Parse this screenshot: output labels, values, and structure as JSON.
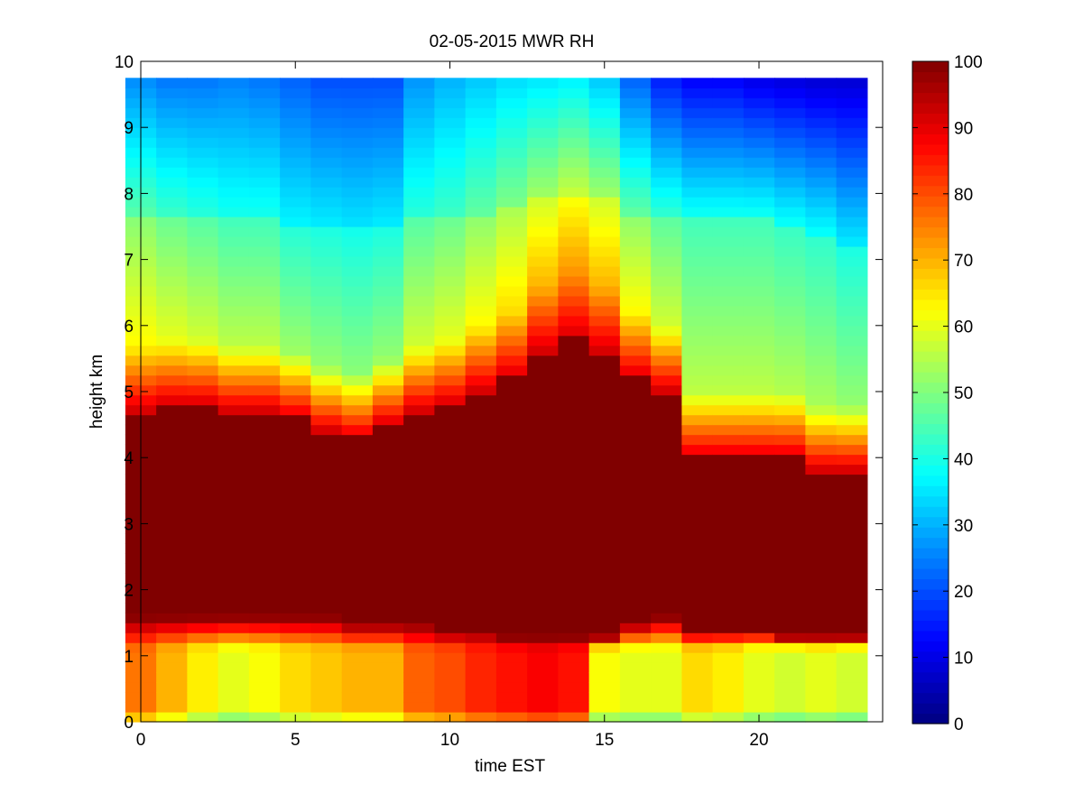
{
  "chart_data": {
    "type": "heatmap",
    "title": "02-05-2015 MWR RH",
    "xlabel": "time EST",
    "ylabel": "height km",
    "xlim": [
      0,
      24
    ],
    "ylim": [
      0,
      10
    ],
    "xticks": [
      0,
      5,
      10,
      15,
      20
    ],
    "yticks": [
      0,
      1,
      2,
      3,
      4,
      5,
      6,
      7,
      8,
      9,
      10
    ],
    "x_centers": [
      0,
      1,
      2,
      3,
      4,
      5,
      6,
      7,
      8,
      9,
      10,
      11,
      12,
      13,
      14,
      15,
      16,
      17,
      18,
      19,
      20,
      21,
      22,
      23
    ],
    "z_label": "RH",
    "colorbar": {
      "min": 0,
      "max": 100,
      "ticks": [
        0,
        10,
        20,
        30,
        40,
        50,
        60,
        70,
        80,
        90,
        100
      ],
      "colormap": "jet"
    },
    "profiles": [
      {
        "bl_peak": 76,
        "base_top": 1.6,
        "moist_top": 4.7,
        "mid_rh": 55,
        "mid_top": 7.6,
        "top_rh": 26
      },
      {
        "bl_peak": 70,
        "base_top": 1.6,
        "moist_top": 4.8,
        "mid_rh": 52,
        "mid_top": 7.6,
        "top_rh": 24
      },
      {
        "bl_peak": 64,
        "base_top": 1.6,
        "moist_top": 4.8,
        "mid_rh": 50,
        "mid_top": 7.6,
        "top_rh": 24
      },
      {
        "bl_peak": 60,
        "base_top": 1.6,
        "moist_top": 4.7,
        "mid_rh": 48,
        "mid_top": 7.6,
        "top_rh": 25
      },
      {
        "bl_peak": 62,
        "base_top": 1.6,
        "moist_top": 4.7,
        "mid_rh": 48,
        "mid_top": 7.6,
        "top_rh": 24
      },
      {
        "bl_peak": 66,
        "base_top": 1.6,
        "moist_top": 4.6,
        "mid_rh": 45,
        "mid_top": 7.5,
        "top_rh": 22
      },
      {
        "bl_peak": 68,
        "base_top": 1.6,
        "moist_top": 4.4,
        "mid_rh": 44,
        "mid_top": 7.5,
        "top_rh": 20
      },
      {
        "bl_peak": 70,
        "base_top": 1.5,
        "moist_top": 4.3,
        "mid_rh": 43,
        "mid_top": 7.5,
        "top_rh": 20
      },
      {
        "bl_peak": 70,
        "base_top": 1.5,
        "moist_top": 4.5,
        "mid_rh": 44,
        "mid_top": 7.5,
        "top_rh": 20
      },
      {
        "bl_peak": 78,
        "base_top": 1.5,
        "moist_top": 4.7,
        "mid_rh": 50,
        "mid_top": 7.6,
        "top_rh": 27
      },
      {
        "bl_peak": 80,
        "base_top": 1.4,
        "moist_top": 4.8,
        "mid_rh": 52,
        "mid_top": 7.6,
        "top_rh": 30
      },
      {
        "bl_peak": 84,
        "base_top": 1.4,
        "moist_top": 5.0,
        "mid_rh": 55,
        "mid_top": 7.7,
        "top_rh": 32
      },
      {
        "bl_peak": 86,
        "base_top": 1.3,
        "moist_top": 5.2,
        "mid_rh": 58,
        "mid_top": 7.8,
        "top_rh": 34
      },
      {
        "bl_peak": 88,
        "base_top": 1.3,
        "moist_top": 5.6,
        "mid_rh": 62,
        "mid_top": 7.9,
        "top_rh": 35
      },
      {
        "bl_peak": 86,
        "base_top": 1.3,
        "moist_top": 5.8,
        "mid_rh": 65,
        "mid_top": 8.0,
        "top_rh": 36
      },
      {
        "bl_peak": 62,
        "base_top": 1.3,
        "moist_top": 5.6,
        "mid_rh": 62,
        "mid_top": 7.9,
        "top_rh": 32
      },
      {
        "bl_peak": 60,
        "base_top": 1.5,
        "moist_top": 5.2,
        "mid_rh": 55,
        "mid_top": 7.7,
        "top_rh": 22
      },
      {
        "bl_peak": 60,
        "base_top": 1.6,
        "moist_top": 5.0,
        "mid_rh": 50,
        "mid_top": 7.7,
        "top_rh": 15
      },
      {
        "bl_peak": 66,
        "base_top": 1.4,
        "moist_top": 4.0,
        "mid_rh": 48,
        "mid_top": 7.6,
        "top_rh": 12
      },
      {
        "bl_peak": 64,
        "base_top": 1.4,
        "moist_top": 4.0,
        "mid_rh": 48,
        "mid_top": 7.6,
        "top_rh": 12
      },
      {
        "bl_peak": 60,
        "base_top": 1.4,
        "moist_top": 4.0,
        "mid_rh": 48,
        "mid_top": 7.6,
        "top_rh": 10
      },
      {
        "bl_peak": 58,
        "base_top": 1.3,
        "moist_top": 4.0,
        "mid_rh": 47,
        "mid_top": 7.5,
        "top_rh": 9
      },
      {
        "bl_peak": 60,
        "base_top": 1.3,
        "moist_top": 3.8,
        "mid_rh": 46,
        "mid_top": 7.4,
        "top_rh": 8
      },
      {
        "bl_peak": 58,
        "base_top": 1.3,
        "moist_top": 3.8,
        "mid_rh": 44,
        "mid_top": 7.2,
        "top_rh": 8
      }
    ]
  }
}
